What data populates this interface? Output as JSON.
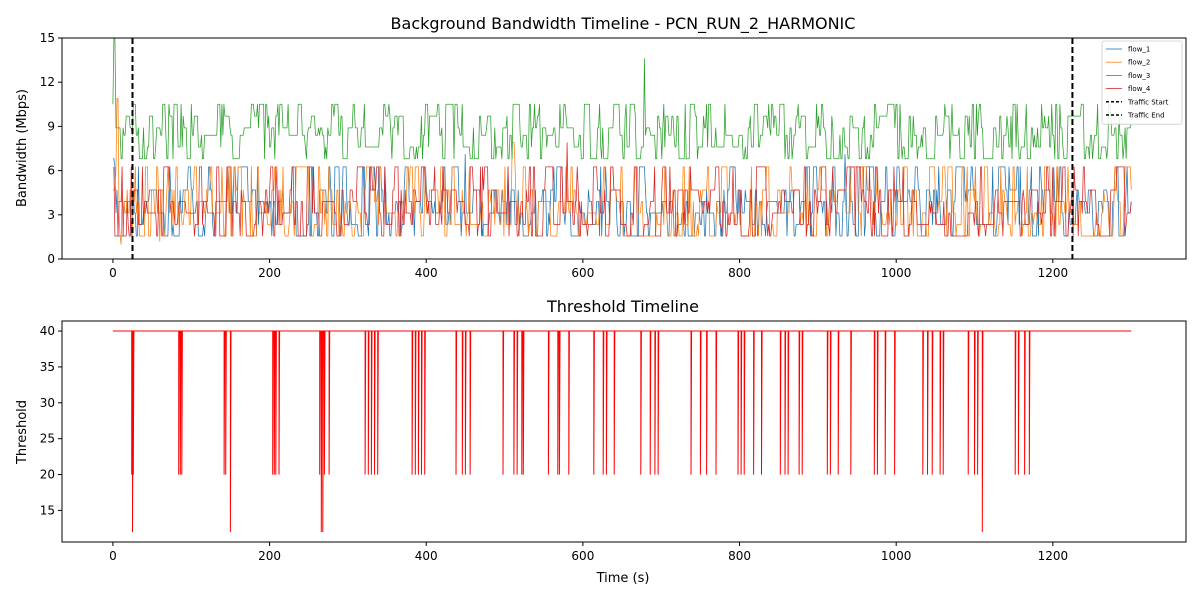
{
  "figure": {
    "background": "#ffffff"
  },
  "chart_data": [
    {
      "type": "line",
      "title": "Background Bandwidth Timeline - PCN_RUN_2_HARMONIC",
      "xlabel": "",
      "ylabel": "Bandwidth (Mbps)",
      "xlim": [
        -65,
        1370
      ],
      "ylim": [
        0,
        15
      ],
      "xticks": [
        0,
        200,
        400,
        600,
        800,
        1000,
        1200
      ],
      "yticks": [
        0,
        3,
        6,
        9,
        12,
        15
      ],
      "grid": false,
      "legend_position": "top-right",
      "series": [
        {
          "name": "flow_1",
          "color": "#1f77b4",
          "levels": [
            1.56,
            2.34,
            3.12,
            3.9,
            4.68,
            6.25
          ],
          "approx_range": [
            1.0,
            7.0
          ],
          "x": [
            0,
            25,
            50,
            100,
            150,
            200,
            300,
            400,
            450,
            500,
            600,
            700,
            800,
            900,
            935,
            1000,
            1100,
            1200,
            1300
          ],
          "y": [
            6.8,
            3.9,
            2.3,
            4.7,
            3.1,
            3.9,
            2.3,
            4.7,
            7.1,
            3.9,
            3.1,
            4.7,
            2.3,
            3.9,
            7.1,
            3.1,
            4.7,
            6.2,
            3.9
          ]
        },
        {
          "name": "flow_2",
          "color": "#ff7f0e",
          "levels": [
            1.56,
            2.34,
            3.12,
            3.9,
            4.68,
            6.25
          ],
          "approx_range": [
            1.0,
            10.9
          ],
          "x": [
            0,
            5,
            10,
            30,
            60,
            100,
            200,
            300,
            400,
            500,
            510,
            600,
            700,
            800,
            900,
            1000,
            1100,
            1200,
            1300
          ],
          "y": [
            4.7,
            10.9,
            1.0,
            3.1,
            1.2,
            4.7,
            2.3,
            3.9,
            3.1,
            4.7,
            7.9,
            2.3,
            3.9,
            3.1,
            4.7,
            2.3,
            3.9,
            3.1,
            4.7
          ]
        },
        {
          "name": "flow_3",
          "color": "#2ca02c",
          "levels": [
            6.8,
            7.6,
            8.4,
            8.9,
            9.7,
            10.5
          ],
          "approx_range": [
            6.8,
            15
          ],
          "x": [
            0,
            1,
            2,
            25,
            100,
            200,
            300,
            400,
            500,
            600,
            678,
            679,
            680,
            700,
            800,
            900,
            1000,
            1100,
            1200,
            1300
          ],
          "y": [
            10.5,
            15.0,
            9.0,
            8.4,
            10.5,
            7.6,
            8.9,
            10.5,
            6.8,
            8.4,
            8.4,
            13.6,
            8.4,
            10.5,
            7.6,
            8.9,
            10.5,
            6.8,
            8.4,
            9.2
          ]
        },
        {
          "name": "flow_4",
          "color": "#d62728",
          "levels": [
            1.56,
            2.34,
            3.12,
            3.9,
            4.68,
            6.25
          ],
          "approx_range": [
            1.56,
            6.25
          ],
          "x": [
            0,
            25,
            100,
            200,
            300,
            400,
            500,
            580,
            600,
            700,
            800,
            900,
            1000,
            1100,
            1200,
            1300
          ],
          "y": [
            6.2,
            3.9,
            3.1,
            4.7,
            2.3,
            3.9,
            3.1,
            7.9,
            4.7,
            2.3,
            3.9,
            3.1,
            4.7,
            2.3,
            6.2,
            3.9
          ]
        },
        {
          "name": "Traffic Start",
          "type": "vline",
          "style": "dashed",
          "color": "#000000",
          "x": 25
        },
        {
          "name": "Traffic End",
          "type": "vline",
          "style": "dashed",
          "color": "#000000",
          "x": 1225
        }
      ]
    },
    {
      "type": "line",
      "title": "Threshold Timeline",
      "xlabel": "Time (s)",
      "ylabel": "Threshold",
      "xlim": [
        -65,
        1370
      ],
      "ylim": [
        10.6,
        41.4
      ],
      "xticks": [
        0,
        200,
        400,
        600,
        800,
        1000,
        1200
      ],
      "yticks": [
        15,
        20,
        25,
        30,
        35,
        40
      ],
      "grid": false,
      "series": [
        {
          "name": "",
          "color": "#ff0000",
          "baseline": 40,
          "end_x": 1300,
          "drops": [
            [
              24,
              20
            ],
            [
              25,
              12
            ],
            [
              26,
              20
            ],
            [
              84,
              20
            ],
            [
              86,
              20
            ],
            [
              88,
              20
            ],
            [
              142,
              20
            ],
            [
              144,
              20
            ],
            [
              150,
              12
            ],
            [
              204,
              20
            ],
            [
              206,
              20
            ],
            [
              208,
              20
            ],
            [
              212,
              20
            ],
            [
              264,
              20
            ],
            [
              266,
              12
            ],
            [
              268,
              12
            ],
            [
              270,
              20
            ],
            [
              276,
              20
            ],
            [
              322,
              20
            ],
            [
              326,
              20
            ],
            [
              330,
              20
            ],
            [
              334,
              20
            ],
            [
              338,
              20
            ],
            [
              382,
              20
            ],
            [
              386,
              20
            ],
            [
              390,
              20
            ],
            [
              394,
              20
            ],
            [
              398,
              20
            ],
            [
              438,
              20
            ],
            [
              446,
              20
            ],
            [
              450,
              20
            ],
            [
              456,
              20
            ],
            [
              498,
              20
            ],
            [
              512,
              20
            ],
            [
              516,
              20
            ],
            [
              522,
              20
            ],
            [
              524,
              20
            ],
            [
              556,
              20
            ],
            [
              568,
              20
            ],
            [
              570,
              20
            ],
            [
              582,
              20
            ],
            [
              614,
              20
            ],
            [
              626,
              20
            ],
            [
              630,
              20
            ],
            [
              640,
              20
            ],
            [
              674,
              20
            ],
            [
              686,
              20
            ],
            [
              692,
              20
            ],
            [
              696,
              20
            ],
            [
              738,
              20
            ],
            [
              750,
              20
            ],
            [
              758,
              20
            ],
            [
              770,
              20
            ],
            [
              798,
              20
            ],
            [
              802,
              20
            ],
            [
              806,
              20
            ],
            [
              818,
              20
            ],
            [
              828,
              20
            ],
            [
              852,
              20
            ],
            [
              858,
              20
            ],
            [
              862,
              20
            ],
            [
              876,
              20
            ],
            [
              880,
              20
            ],
            [
              912,
              20
            ],
            [
              916,
              20
            ],
            [
              926,
              20
            ],
            [
              942,
              20
            ],
            [
              972,
              20
            ],
            [
              976,
              20
            ],
            [
              986,
              20
            ],
            [
              998,
              20
            ],
            [
              1034,
              20
            ],
            [
              1040,
              20
            ],
            [
              1046,
              20
            ],
            [
              1056,
              20
            ],
            [
              1060,
              20
            ],
            [
              1092,
              20
            ],
            [
              1100,
              20
            ],
            [
              1104,
              20
            ],
            [
              1110,
              12
            ],
            [
              1152,
              20
            ],
            [
              1156,
              20
            ],
            [
              1164,
              20
            ],
            [
              1170,
              20
            ]
          ]
        }
      ]
    }
  ]
}
